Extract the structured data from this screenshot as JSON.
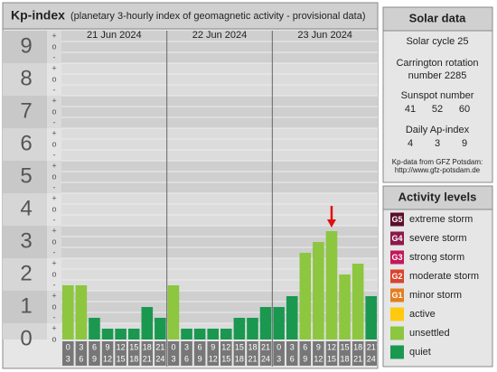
{
  "chart_data": {
    "type": "bar",
    "title": "Kp-index",
    "subtitle": "(planetary 3-hourly index of geomagnetic activity - provisional data)",
    "days": [
      "21 Jun 2024",
      "22 Jun 2024",
      "23 Jun 2024"
    ],
    "hours": [
      [
        0,
        3
      ],
      [
        3,
        6
      ],
      [
        6,
        9
      ],
      [
        9,
        12
      ],
      [
        12,
        15
      ],
      [
        15,
        18
      ],
      [
        18,
        21
      ],
      [
        21,
        24
      ]
    ],
    "values": [
      1.667,
      1.667,
      0.667,
      0.333,
      0.333,
      0.333,
      1,
      0.667,
      1.667,
      0.333,
      0.333,
      0.333,
      0.333,
      0.667,
      0.667,
      1,
      1,
      1.333,
      2.667,
      3,
      3.333,
      2,
      2.333,
      1.333
    ],
    "colors": [
      "#8dc63f",
      "#8dc63f",
      "#1a9850",
      "#1a9850",
      "#1a9850",
      "#1a9850",
      "#1a9850",
      "#1a9850",
      "#8dc63f",
      "#1a9850",
      "#1a9850",
      "#1a9850",
      "#1a9850",
      "#1a9850",
      "#1a9850",
      "#1a9850",
      "#1a9850",
      "#1a9850",
      "#8dc63f",
      "#8dc63f",
      "#8dc63f",
      "#8dc63f",
      "#8dc63f",
      "#1a9850"
    ],
    "ylim": [
      0,
      9.5
    ],
    "yticks": [
      0,
      1,
      2,
      3,
      4,
      5,
      6,
      7,
      8,
      9
    ],
    "minor_labels": [
      "-",
      "o",
      "+"
    ]
  },
  "solar_data": {
    "title": "Solar data",
    "cycle": "Solar cycle 25",
    "rotation": [
      "Carrington rotation",
      "number 2285"
    ],
    "sunspot_title": "Sunspot number",
    "sunspot": [
      41,
      52,
      60
    ],
    "ap_title": "Daily Ap-index",
    "ap": [
      4,
      3,
      9
    ],
    "source": [
      "Kp-data from GFZ Potsdam:",
      "http://www.gfz-potsdam.de"
    ]
  },
  "legend": {
    "title": "Activity levels",
    "items": [
      {
        "badge": "G5",
        "name": "extreme storm",
        "color": "#5a0e2a"
      },
      {
        "badge": "G4",
        "name": "severe storm",
        "color": "#8b1a4a"
      },
      {
        "badge": "G3",
        "name": "strong storm",
        "color": "#c2185b"
      },
      {
        "badge": "G2",
        "name": "moderate storm",
        "color": "#d9442c"
      },
      {
        "badge": "G1",
        "name": "minor storm",
        "color": "#e57d1e"
      },
      {
        "name": "active",
        "color": "#ffc90e"
      },
      {
        "name": "unsettled",
        "color": "#8dc63f"
      },
      {
        "name": "quiet",
        "color": "#1a9850"
      }
    ]
  }
}
